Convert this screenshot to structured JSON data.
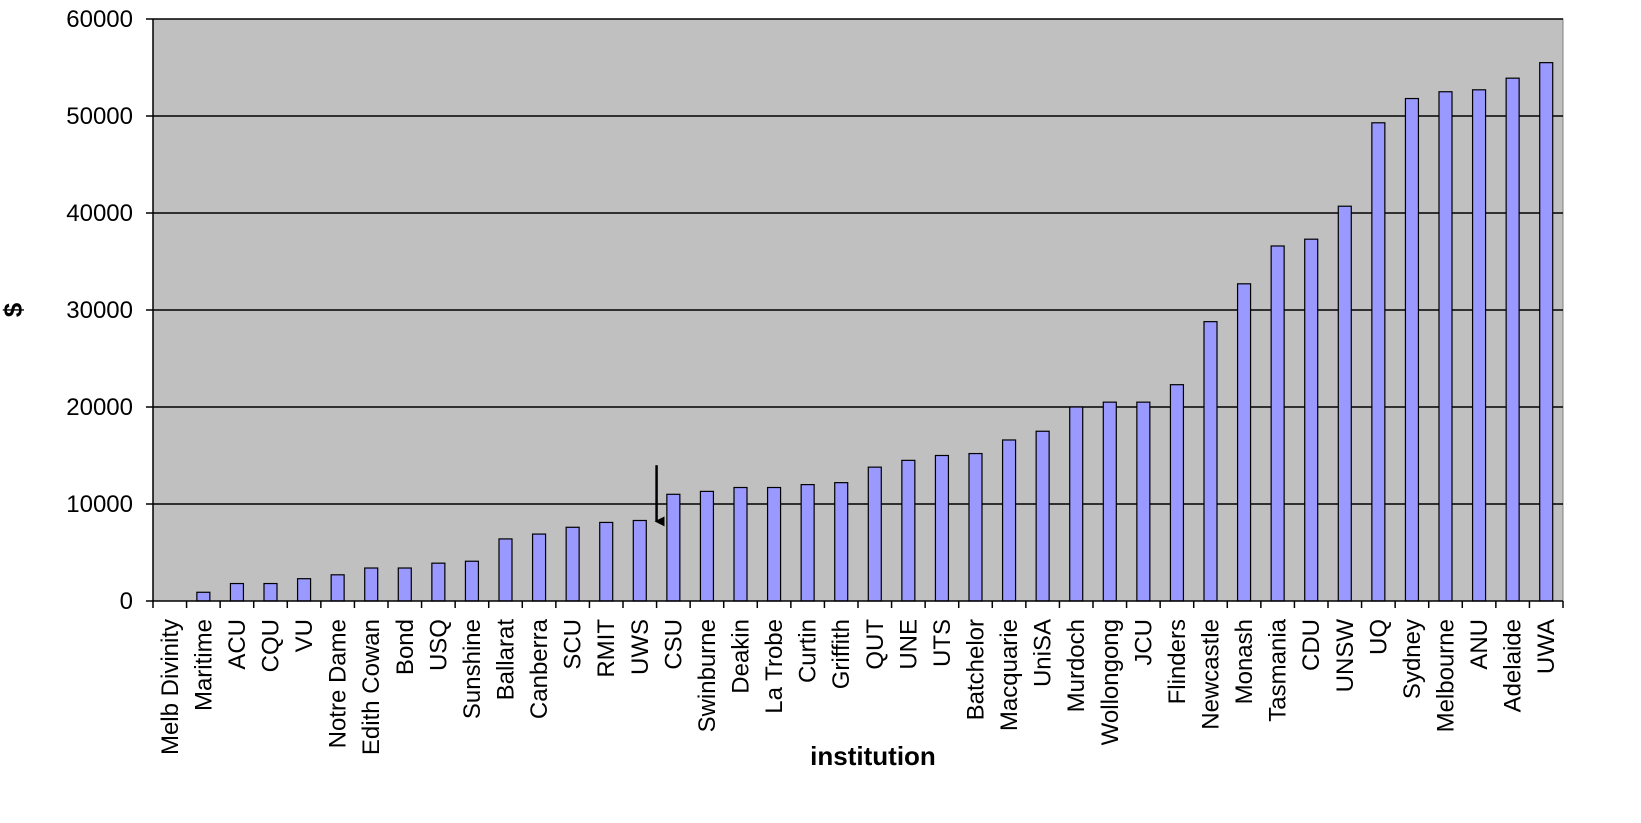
{
  "chart_data": {
    "type": "bar",
    "title": "",
    "xlabel": "institution",
    "ylabel": "$",
    "ylim": [
      0,
      60000
    ],
    "yticks": [
      0,
      10000,
      20000,
      30000,
      40000,
      50000,
      60000
    ],
    "grid": true,
    "legend": "none",
    "colors": {
      "plot_background": "#c0c0c0",
      "bar_fill": "#9999ff",
      "bar_stroke": "#000000",
      "gridline": "#000000"
    },
    "categories": [
      "Melb Divinity",
      "Maritime",
      "ACU",
      "CQU",
      "VU",
      "Notre Dame",
      "Edith Cowan",
      "Bond",
      "USQ",
      "Sunshine",
      "Ballarat",
      "Canberra",
      "SCU",
      "RMIT",
      "UWS",
      "CSU",
      "Swinburne",
      "Deakin",
      "La Trobe",
      "Curtin",
      "Griffith",
      "QUT",
      "UNE",
      "UTS",
      "Batchelor",
      "Macquarie",
      "UniSA",
      "Murdoch",
      "Wollongong",
      "JCU",
      "Flinders",
      "Newcastle",
      "Monash",
      "Tasmania",
      "CDU",
      "UNSW",
      "UQ",
      "Sydney",
      "Melbourne",
      "ANU",
      "Adelaide",
      "UWA"
    ],
    "values": [
      0,
      900,
      1800,
      1800,
      2300,
      2700,
      3400,
      3400,
      3900,
      4100,
      6400,
      6900,
      7600,
      8100,
      8300,
      11000,
      11300,
      11700,
      11700,
      12000,
      12200,
      13800,
      14500,
      15000,
      15200,
      16600,
      17500,
      20000,
      20500,
      20500,
      22300,
      28800,
      32700,
      36600,
      37300,
      40700,
      49300,
      51800,
      52500,
      52700,
      53900,
      55500
    ],
    "annotations": [
      {
        "type": "arrow",
        "between": [
          "UWS",
          "CSU"
        ],
        "from_value": 14000,
        "to_value": 8000
      }
    ]
  }
}
